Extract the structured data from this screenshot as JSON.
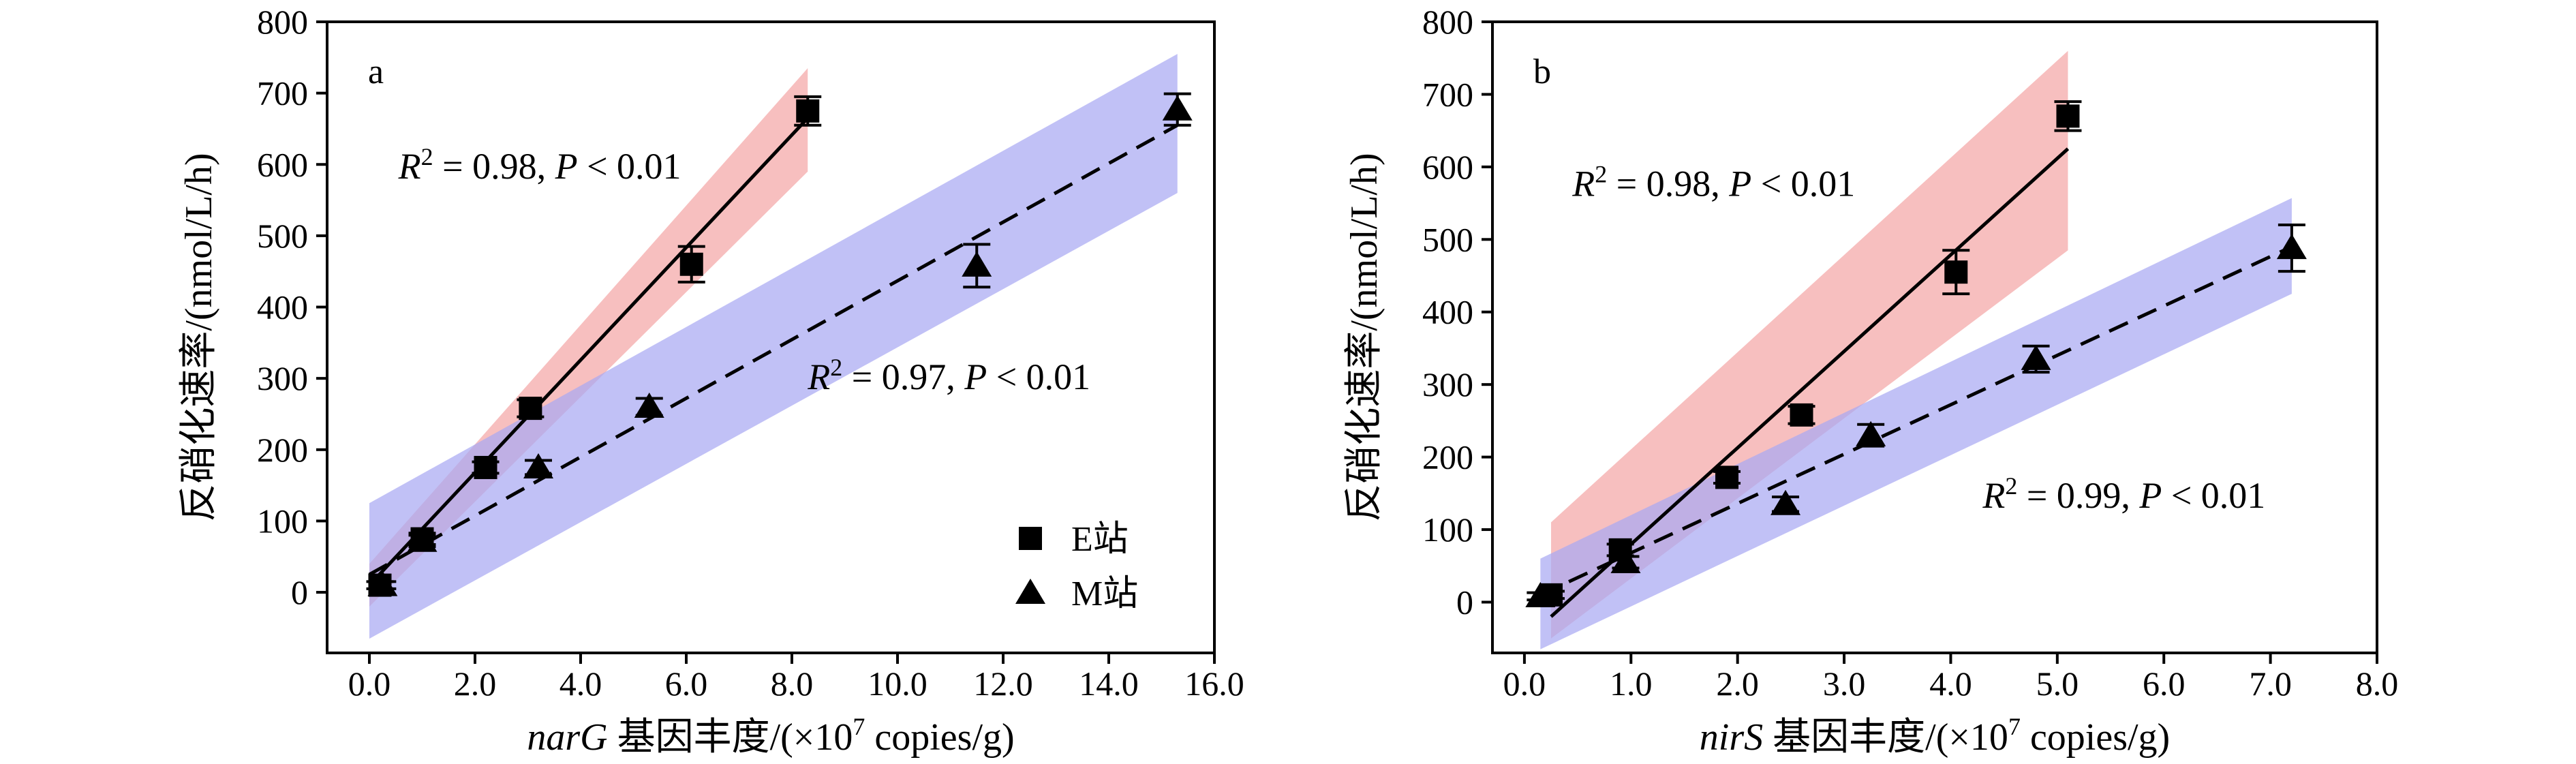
{
  "chart_data": [
    {
      "type": "scatter",
      "panel_label": "a",
      "xlabel_italic": "narG",
      "xlabel_rest": " 基因丰度/(×10",
      "xlabel_sup": "7",
      "xlabel_end": " copies/g)",
      "ylabel": "反硝化速率/(nmol/L/h)",
      "xlim": [
        -0.8,
        16.0
      ],
      "ylim": [
        -85,
        800
      ],
      "xticks": [
        0.0,
        2.0,
        4.0,
        6.0,
        8.0,
        10.0,
        12.0,
        14.0,
        16.0
      ],
      "xtick_labels": [
        "0.0",
        "2.0",
        "4.0",
        "6.0",
        "8.0",
        "10.0",
        "12.0",
        "14.0",
        "16.0"
      ],
      "yticks": [
        0,
        100,
        200,
        300,
        400,
        500,
        600,
        700,
        800
      ],
      "ytick_labels": [
        "0",
        "100",
        "200",
        "300",
        "400",
        "500",
        "600",
        "700",
        "800"
      ],
      "legend_position": "bottom-right",
      "series": [
        {
          "name": "E站",
          "marker": "square",
          "line_style": "solid",
          "band_color": "#f4a6a6",
          "points": [
            {
              "x": 0.2,
              "y": 10,
              "err": 5
            },
            {
              "x": 1.0,
              "y": 75,
              "err": 8
            },
            {
              "x": 2.2,
              "y": 175,
              "err": 8
            },
            {
              "x": 3.05,
              "y": 258,
              "err": 12
            },
            {
              "x": 6.1,
              "y": 460,
              "err": 25
            },
            {
              "x": 8.3,
              "y": 675,
              "err": 20
            }
          ],
          "fit": {
            "x1": 0.0,
            "y1": 10,
            "x2": 8.3,
            "y2": 665
          },
          "band": {
            "lower": [
              [
                0.0,
                -20
              ],
              [
                8.3,
                590
              ]
            ],
            "upper": [
              [
                0.0,
                40
              ],
              [
                8.3,
                735
              ]
            ]
          },
          "annotation": {
            "r_label": "R",
            "r_sup": "2",
            "r_value": " = 0.98, ",
            "p_label": "P",
            "p_value": " < 0.01",
            "ax": 0.55,
            "ay": 580
          }
        },
        {
          "name": "M站",
          "marker": "triangle",
          "line_style": "dashed",
          "band_color": "#a9a9f2",
          "points": [
            {
              "x": 0.25,
              "y": 10,
              "err": 5
            },
            {
              "x": 1.0,
              "y": 72,
              "err": 8
            },
            {
              "x": 3.2,
              "y": 175,
              "err": 10
            },
            {
              "x": 5.3,
              "y": 260,
              "err": 12
            },
            {
              "x": 11.5,
              "y": 458,
              "err": 30
            },
            {
              "x": 15.3,
              "y": 677,
              "err": 22
            }
          ],
          "fit": {
            "x1": 0.0,
            "y1": 25,
            "x2": 15.3,
            "y2": 655
          },
          "band": {
            "lower": [
              [
                0.0,
                -65
              ],
              [
                15.3,
                560
              ]
            ],
            "upper": [
              [
                0.0,
                125
              ],
              [
                15.3,
                755
              ]
            ]
          },
          "annotation": {
            "r_label": "R",
            "r_sup": "2",
            "r_value": " = 0.97, ",
            "p_label": "P",
            "p_value": " < 0.01",
            "ax": 8.3,
            "ay": 285
          }
        }
      ]
    },
    {
      "type": "scatter",
      "panel_label": "b",
      "xlabel_italic": "nirS",
      "xlabel_rest": " 基因丰度/(×10",
      "xlabel_sup": "7",
      "xlabel_end": " copies/g)",
      "ylabel": "反硝化速率/(nmol/L/h)",
      "xlim": [
        -0.3,
        8.0
      ],
      "ylim": [
        -70,
        800
      ],
      "xticks": [
        0.0,
        1.0,
        2.0,
        3.0,
        4.0,
        5.0,
        6.0,
        7.0,
        8.0
      ],
      "xtick_labels": [
        "0.0",
        "1.0",
        "2.0",
        "3.0",
        "4.0",
        "5.0",
        "6.0",
        "7.0",
        "8.0"
      ],
      "yticks": [
        0,
        100,
        200,
        300,
        400,
        500,
        600,
        700,
        800
      ],
      "ytick_labels": [
        "0",
        "100",
        "200",
        "300",
        "400",
        "500",
        "600",
        "700",
        "800"
      ],
      "legend_position": "",
      "series": [
        {
          "name": "E站",
          "marker": "square",
          "line_style": "solid",
          "band_color": "#f4a6a6",
          "points": [
            {
              "x": 0.25,
              "y": 10,
              "err": 5
            },
            {
              "x": 0.9,
              "y": 72,
              "err": 8
            },
            {
              "x": 1.9,
              "y": 172,
              "err": 8
            },
            {
              "x": 2.6,
              "y": 258,
              "err": 12
            },
            {
              "x": 4.05,
              "y": 455,
              "err": 30
            },
            {
              "x": 5.1,
              "y": 670,
              "err": 20
            }
          ],
          "fit": {
            "x1": 0.25,
            "y1": -20,
            "x2": 5.1,
            "y2": 625
          },
          "band": {
            "lower": [
              [
                0.25,
                -50
              ],
              [
                5.1,
                485
              ]
            ],
            "upper": [
              [
                0.25,
                110
              ],
              [
                5.1,
                760
              ]
            ]
          },
          "annotation": {
            "r_label": "R",
            "r_sup": "2",
            "r_value": " = 0.98, ",
            "p_label": "P",
            "p_value": " < 0.01",
            "ax": 0.45,
            "ay": 560
          }
        },
        {
          "name": "M站",
          "marker": "triangle",
          "line_style": "dashed",
          "band_color": "#a9a9f2",
          "points": [
            {
              "x": 0.15,
              "y": 8,
              "err": 5
            },
            {
              "x": 0.95,
              "y": 55,
              "err": 8
            },
            {
              "x": 2.45,
              "y": 135,
              "err": 10
            },
            {
              "x": 3.25,
              "y": 230,
              "err": 15
            },
            {
              "x": 4.8,
              "y": 335,
              "err": 18
            },
            {
              "x": 7.2,
              "y": 488,
              "err": 32
            }
          ],
          "fit": {
            "x1": 0.15,
            "y1": 10,
            "x2": 7.2,
            "y2": 490
          },
          "band": {
            "lower": [
              [
                0.15,
                -65
              ],
              [
                7.2,
                425
              ]
            ],
            "upper": [
              [
                0.15,
                60
              ],
              [
                7.2,
                557
              ]
            ]
          },
          "annotation": {
            "r_label": "R",
            "r_sup": "2",
            "r_value": " = 0.99, ",
            "p_label": "P",
            "p_value": " < 0.01",
            "ax": 4.3,
            "ay": 130
          }
        }
      ]
    }
  ]
}
